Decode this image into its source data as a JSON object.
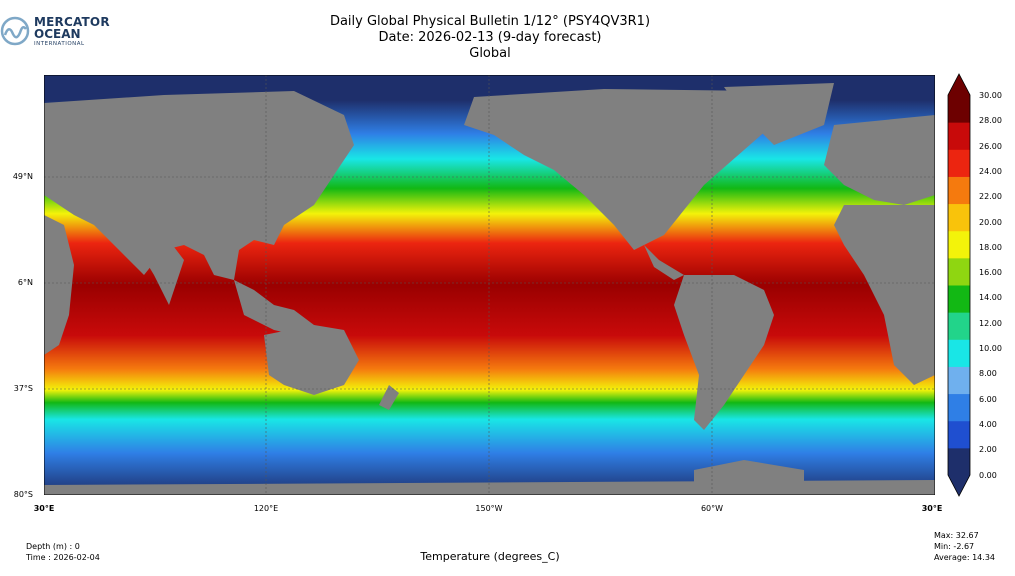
{
  "logo": {
    "line1": "MERCATOR",
    "line2": "OCEAN",
    "line3": "INTERNATIONAL",
    "color": "#1e3a5f",
    "icon": "mercator-wave-icon"
  },
  "title": {
    "line1": "Daily Global Physical Bulletin 1/12° (PSY4QV3R1)",
    "line2": "Date: 2026-02-13 (9-day forecast)",
    "line3": "Global"
  },
  "lat_labels": [
    "49°N",
    "6°N",
    "37°S",
    "80°S"
  ],
  "lon_labels": [
    "30°E",
    "120°E",
    "150°W",
    "60°W",
    "30°E"
  ],
  "colorbar": {
    "ticks": [
      "30.00",
      "28.00",
      "26.00",
      "24.00",
      "22.00",
      "20.00",
      "18.00",
      "16.00",
      "14.00",
      "12.00",
      "10.00",
      "8.00",
      "6.00",
      "4.00",
      "2.00",
      "0.00"
    ],
    "colors": [
      "#1e2f6b",
      "#1f4fd0",
      "#2f7fe6",
      "#6fb0ee",
      "#19e6e6",
      "#22d48a",
      "#12b814",
      "#8fd611",
      "#f3f30a",
      "#f9c30b",
      "#f57a0e",
      "#ec2510",
      "#c80a0a",
      "#6d0000"
    ]
  },
  "footer": {
    "depth": "Depth (m) : 0",
    "time": "Time : 2026-02-04",
    "variable": "Temperature (degrees_C)",
    "max": "Max: 32.67",
    "min": "Min: -2.67",
    "average": "Average: 14.34"
  }
}
